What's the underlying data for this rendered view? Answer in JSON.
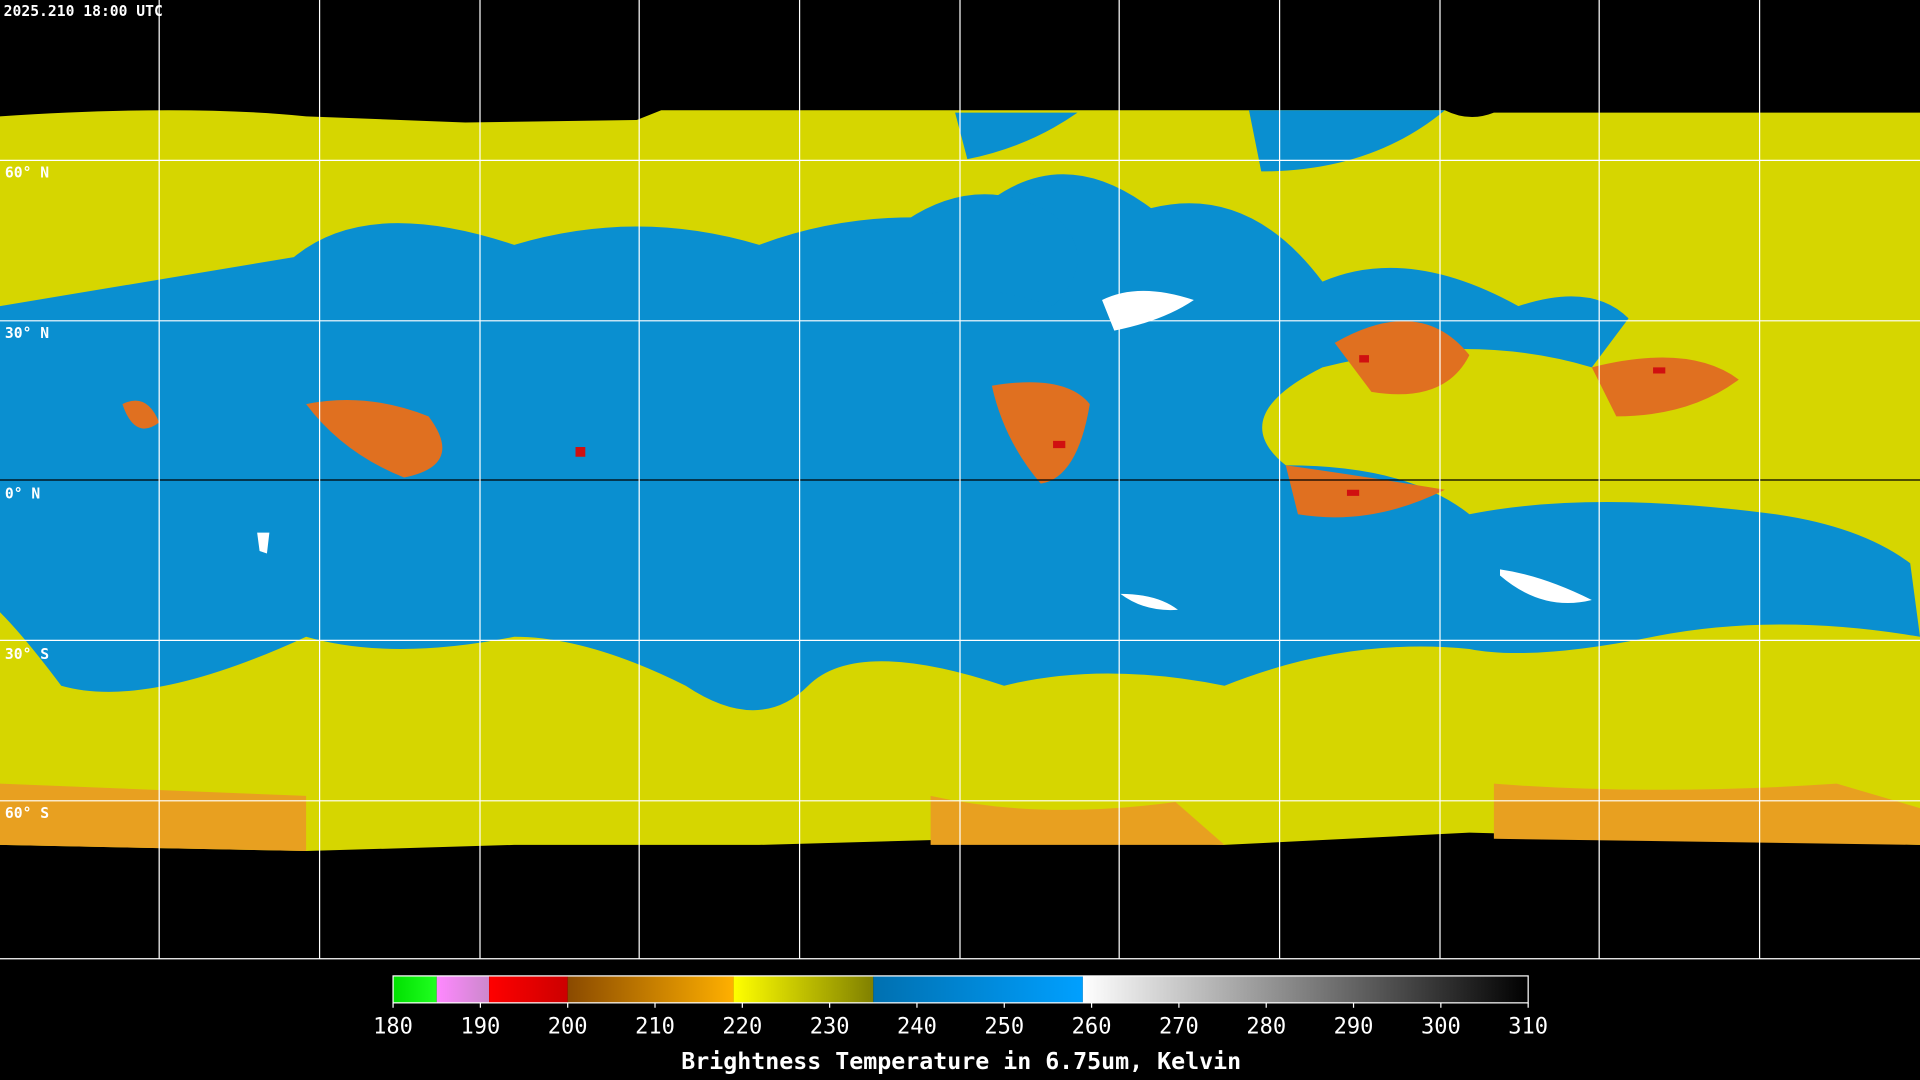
{
  "timestamp": "2025.210 18:00 UTC",
  "latitude_labels": [
    "60° N",
    "30° N",
    "0° N",
    "30° S",
    "60° S"
  ],
  "colorbar": {
    "title": "Brightness Temperature in 6.75um, Kelvin",
    "range": [
      180,
      310
    ],
    "ticks": [
      180,
      190,
      200,
      210,
      220,
      230,
      240,
      250,
      260,
      270,
      280,
      290,
      300,
      310
    ],
    "segments": [
      {
        "from": 180,
        "to": 185,
        "colors": [
          "#00e000",
          "#20ff20"
        ]
      },
      {
        "from": 185,
        "to": 191,
        "colors": [
          "#ff88ff",
          "#cc88cc"
        ]
      },
      {
        "from": 191,
        "to": 200,
        "colors": [
          "#ff0000",
          "#cc0000"
        ]
      },
      {
        "from": 200,
        "to": 219,
        "colors": [
          "#8a4a00",
          "#ffb000"
        ]
      },
      {
        "from": 219,
        "to": 235,
        "colors": [
          "#ffff00",
          "#808000"
        ]
      },
      {
        "from": 235,
        "to": 259,
        "colors": [
          "#0070b0",
          "#00a0ff"
        ]
      },
      {
        "from": 259,
        "to": 310,
        "colors": [
          "#ffffff",
          "#000000"
        ]
      }
    ]
  }
}
